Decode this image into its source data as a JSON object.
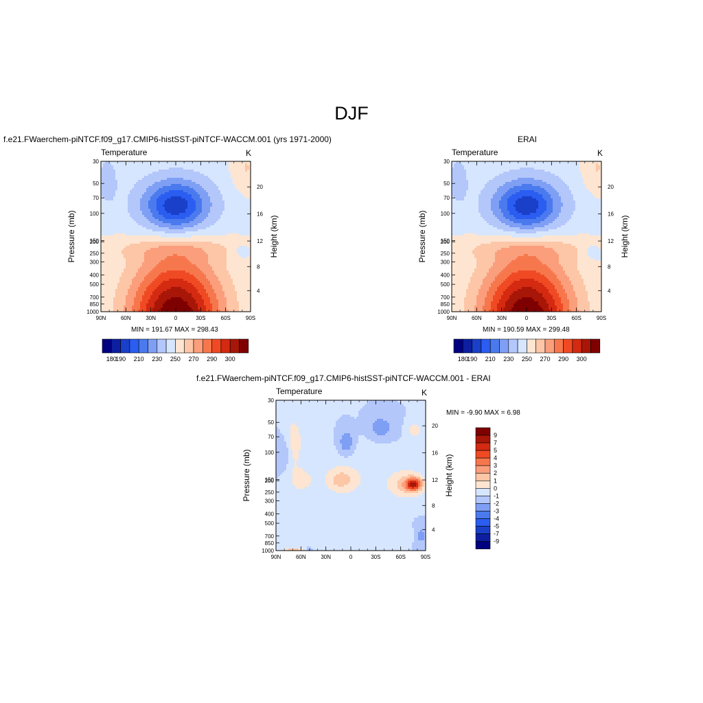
{
  "page_title": "DJF",
  "chart_data": [
    {
      "type": "heatmap",
      "id": "model",
      "title": "f.e21.FWaerchem-piNTCF.f09_g17.CMIP6-histSST-piNTCF-WACCM.001 (yrs 1971-2000)",
      "subtitle_left": "Temperature",
      "subtitle_right": "K",
      "xlabel": "",
      "ylabel": "Pressure (mb)",
      "ylabel_right": "Height (km)",
      "x_ticks": [
        "90N",
        "60N",
        "30N",
        "0",
        "30S",
        "60S",
        "90S"
      ],
      "y_ticks": [
        "30",
        "50",
        "70",
        "100",
        "150",
        "200",
        "250",
        "300",
        "400",
        "500",
        "700",
        "850",
        "1000"
      ],
      "y_ticks_right": [
        "20",
        "16",
        "12",
        "8",
        "4"
      ],
      "ylim": [
        1000,
        30
      ],
      "y_scale": "log",
      "stats": "MIN = 191.67  MAX = 298.43",
      "colorbar_labels": [
        "180",
        "190",
        "210",
        "230",
        "250",
        "270",
        "290",
        "300"
      ]
    },
    {
      "type": "heatmap",
      "id": "obs",
      "title": "ERAI",
      "subtitle_left": "Temperature",
      "subtitle_right": "K",
      "ylabel": "Pressure (mb)",
      "ylabel_right": "Height (km)",
      "x_ticks": [
        "90N",
        "60N",
        "30N",
        "0",
        "30S",
        "60S",
        "90S"
      ],
      "y_ticks": [
        "30",
        "50",
        "70",
        "100",
        "150",
        "200",
        "250",
        "300",
        "400",
        "500",
        "700",
        "850",
        "1000"
      ],
      "y_ticks_right": [
        "20",
        "16",
        "12",
        "8",
        "4"
      ],
      "ylim": [
        1000,
        30
      ],
      "y_scale": "log",
      "stats": "MIN = 190.59  MAX = 299.48",
      "colorbar_labels": [
        "180",
        "190",
        "210",
        "230",
        "250",
        "270",
        "290",
        "300"
      ]
    },
    {
      "type": "heatmap",
      "id": "diff",
      "title": "f.e21.FWaerchem-piNTCF.f09_g17.CMIP6-histSST-piNTCF-WACCM.001 - ERAI",
      "subtitle_left": "Temperature",
      "subtitle_right": "K",
      "ylabel": "Pressure (mb)",
      "ylabel_right": "Height (km)",
      "x_ticks": [
        "90N",
        "60N",
        "30N",
        "0",
        "30S",
        "60S",
        "90S"
      ],
      "y_ticks": [
        "30",
        "50",
        "70",
        "100",
        "150",
        "200",
        "250",
        "300",
        "400",
        "500",
        "700",
        "850",
        "1000"
      ],
      "y_ticks_right": [
        "20",
        "16",
        "12",
        "8",
        "4"
      ],
      "ylim": [
        1000,
        30
      ],
      "y_scale": "log",
      "stats": "MIN =  -9.90  MAX =   6.98",
      "colorbar_labels": [
        "9",
        "7",
        "5",
        "4",
        "3",
        "2",
        "1",
        "0",
        "-1",
        "-2",
        "-3",
        "-4",
        "-5",
        "-7",
        "-9"
      ]
    }
  ],
  "palette_abs": [
    "#000080",
    "#0d1fa0",
    "#1a3fc8",
    "#2a5df0",
    "#4a7aee",
    "#7f9ff5",
    "#b3c7fb",
    "#d7e6ff",
    "#fde5d1",
    "#fcc6a7",
    "#fb9e7c",
    "#f7774d",
    "#f04a24",
    "#d32a11",
    "#a81608",
    "#7f0000"
  ],
  "palette_diff": [
    "#7f0000",
    "#a81608",
    "#d32a11",
    "#f04a24",
    "#f7774d",
    "#fb9e7c",
    "#fcc6a7",
    "#fde5d1",
    "#d7e6ff",
    "#b3c7fb",
    "#7f9ff5",
    "#4a7aee",
    "#2a5df0",
    "#1a3fc8",
    "#0d1fa0",
    "#000080"
  ]
}
